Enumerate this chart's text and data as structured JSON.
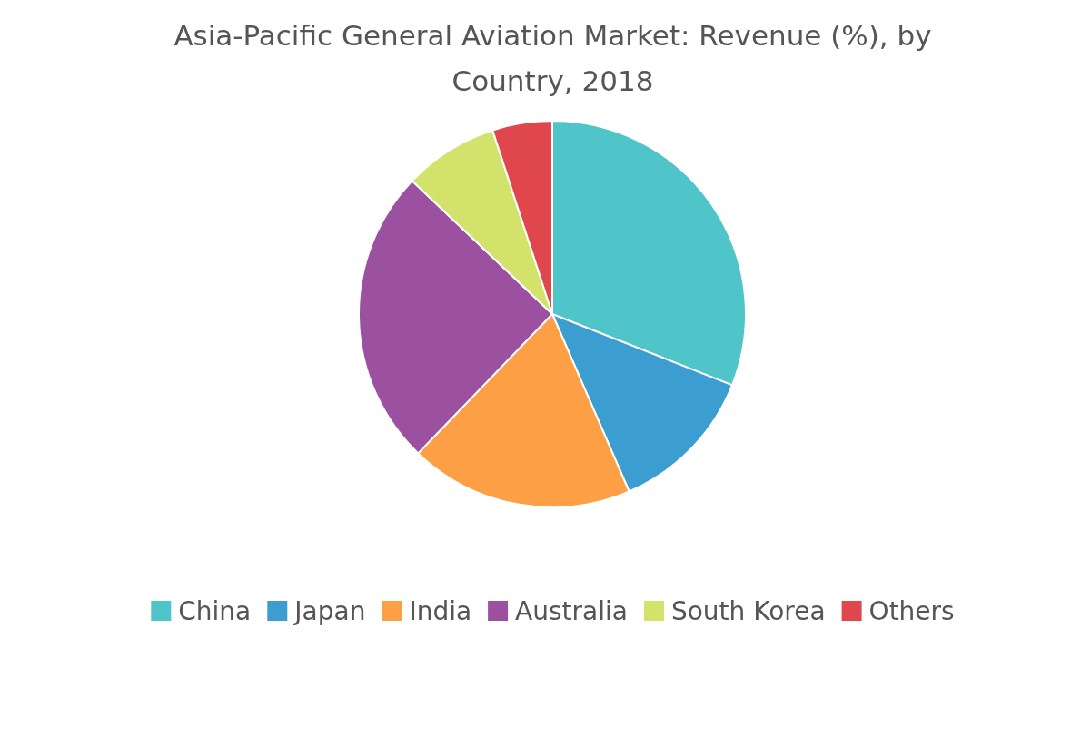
{
  "chart_data": {
    "type": "pie",
    "title": "Asia-Pacific General Aviation Market: Revenue (%), by Country, 2018",
    "categories": [
      "China",
      "Japan",
      "India",
      "Australia",
      "South Korea",
      "Others"
    ],
    "values": [
      31,
      12.5,
      18.7,
      24.9,
      7.9,
      5
    ],
    "colors": [
      "#4fc4c9",
      "#3c9dd0",
      "#fd9f45",
      "#9b50a0",
      "#d3e26a",
      "#e0474c"
    ],
    "legend": "bottom"
  }
}
